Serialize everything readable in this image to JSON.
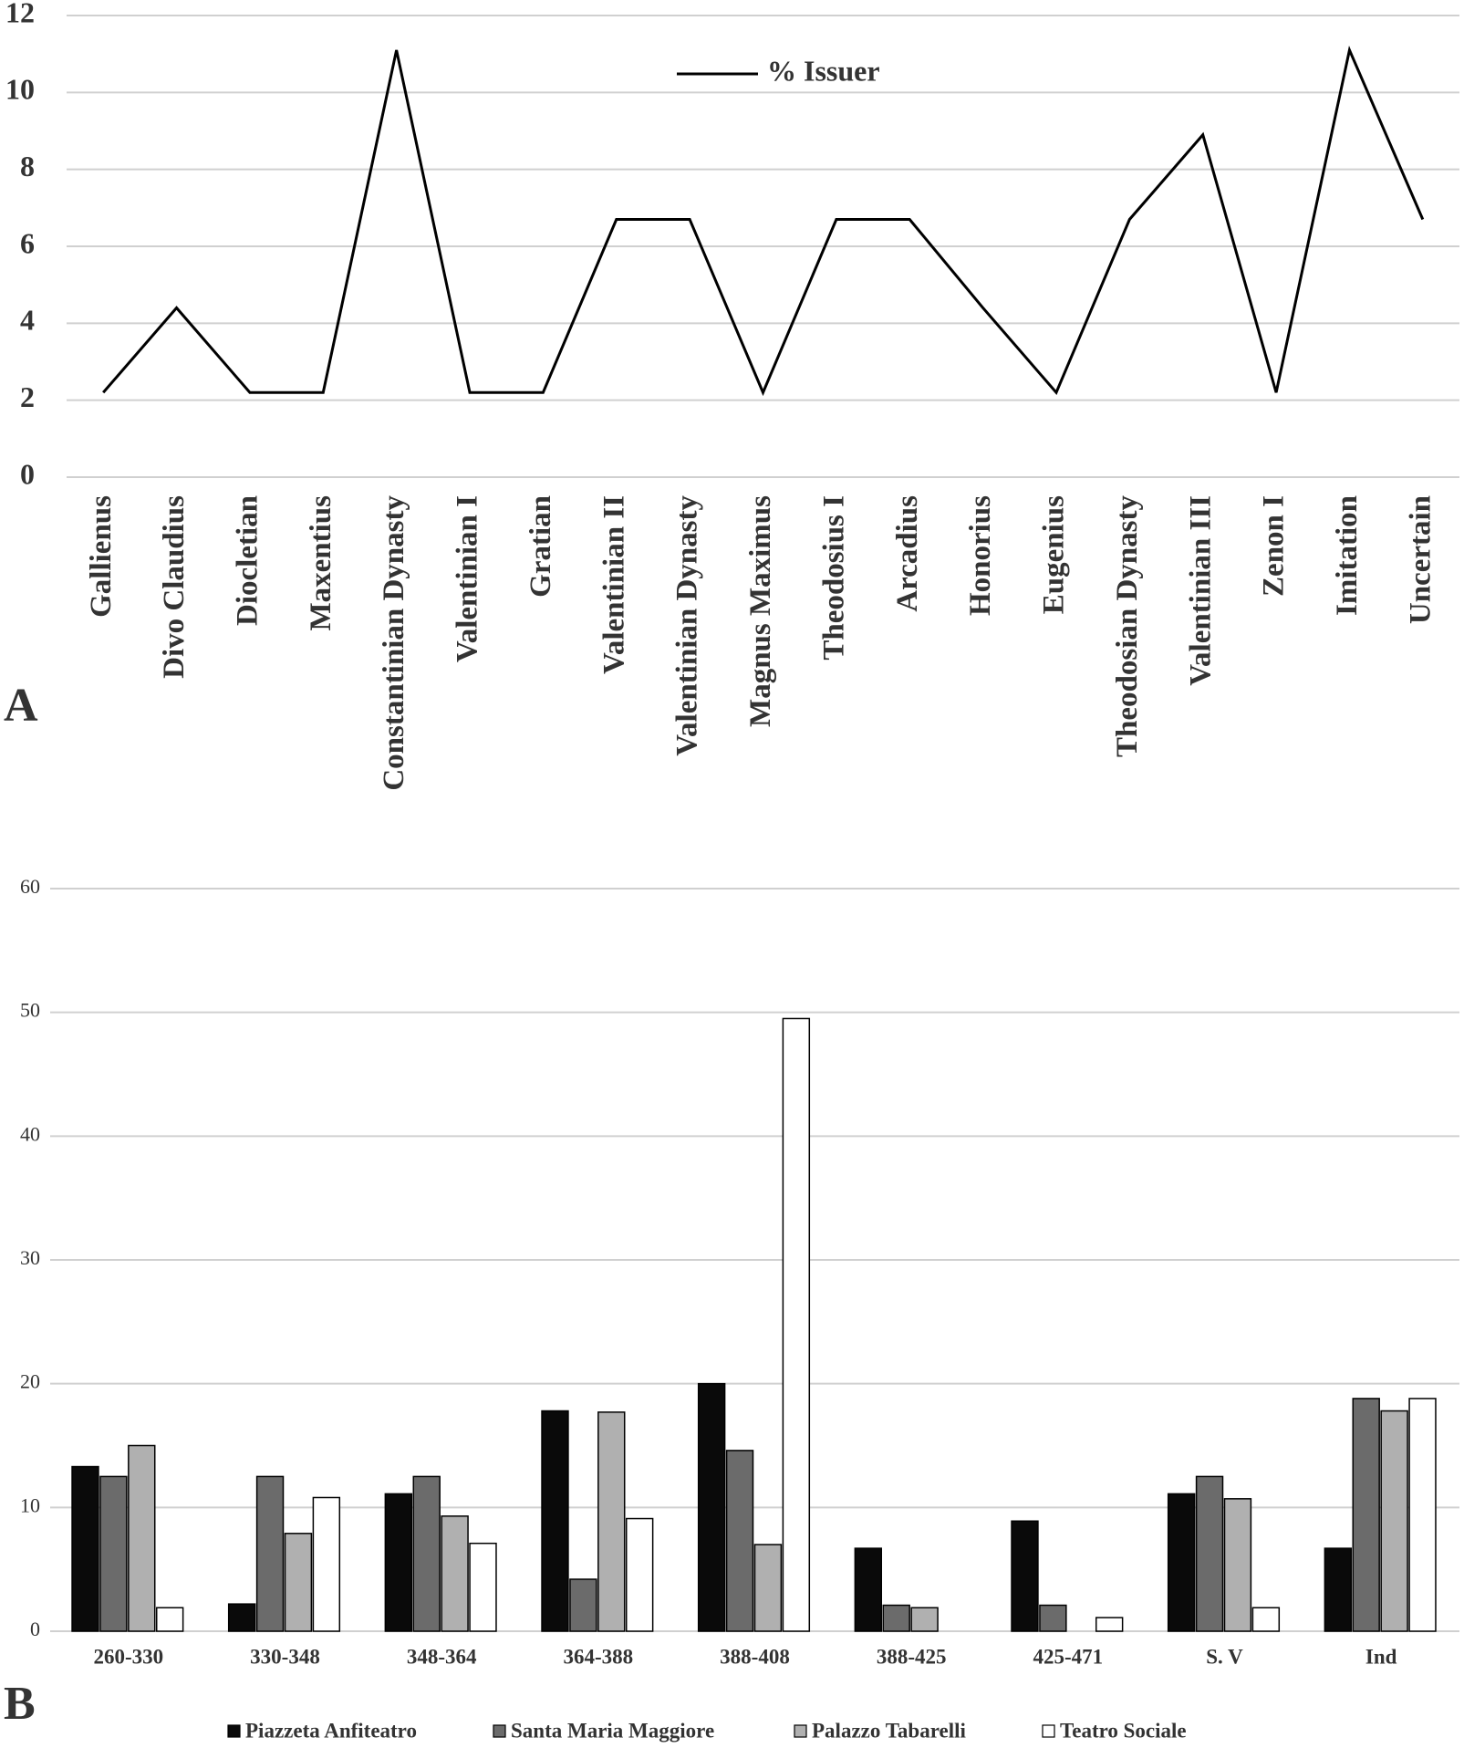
{
  "chart_data": [
    {
      "type": "line",
      "panel": "A",
      "categories": [
        "Gallienus",
        "Divo Claudius",
        "Diocletian",
        "Maxentius",
        "Constantinian Dynasty",
        "Valentinian I",
        "Gratian",
        "Valentinian II",
        "Valentinian Dynasty",
        "Magnus Maximus",
        "Theodosius I",
        "Arcadius",
        "Honorius",
        "Eugenius",
        "Theodosian Dynasty",
        "Valentinian III",
        "Zenon I",
        "Imitation",
        "Uncertain"
      ],
      "series": [
        {
          "name": "% Issuer",
          "color": "#000000",
          "values": [
            2.2,
            4.4,
            2.2,
            2.2,
            11.1,
            2.2,
            2.2,
            6.7,
            6.7,
            2.2,
            6.7,
            6.7,
            4.4,
            2.2,
            6.7,
            8.9,
            2.2,
            11.1,
            6.7
          ]
        }
      ],
      "ylim": [
        0,
        12
      ],
      "yticks": [
        0,
        2,
        4,
        6,
        8,
        10,
        12
      ],
      "grid": true,
      "legend": "top"
    },
    {
      "type": "bar",
      "panel": "B",
      "categories": [
        "260-330",
        "330-348",
        "348-364",
        "364-388",
        "388-408",
        "388-425",
        "425-471",
        "S. V",
        "Ind"
      ],
      "series": [
        {
          "name": "Piazzeta Anfiteatro",
          "color": "#0a0a0a",
          "values": [
            13.3,
            2.2,
            11.1,
            17.8,
            20,
            6.7,
            8.9,
            11.1,
            6.7
          ]
        },
        {
          "name": "Santa Maria Maggiore",
          "color": "#6b6b6b",
          "values": [
            12.5,
            12.5,
            12.5,
            4.2,
            14.6,
            2.1,
            2.1,
            12.5,
            18.8
          ]
        },
        {
          "name": "Palazzo Tabarelli",
          "color": "#b0b0b0",
          "values": [
            15,
            7.9,
            9.3,
            17.7,
            7,
            1.9,
            0,
            10.7,
            17.8
          ]
        },
        {
          "name": "Teatro Sociale",
          "color": "#ffffff",
          "values": [
            1.9,
            10.8,
            7.1,
            9.1,
            49.5,
            0,
            1.1,
            1.9,
            18.8
          ]
        }
      ],
      "ylim": [
        0,
        60
      ],
      "yticks": [
        0,
        10,
        20,
        30,
        40,
        50,
        60
      ],
      "grid": true,
      "legend": "bottom"
    }
  ]
}
